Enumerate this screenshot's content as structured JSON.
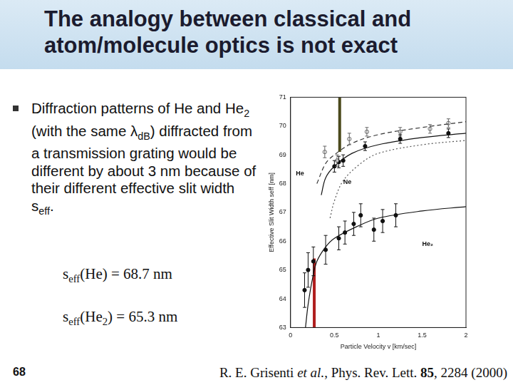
{
  "slide": {
    "title": "The analogy between classical and atom/molecule optics is not exact",
    "bullet": [
      {
        "text": "Diffraction patterns of He and He"
      },
      {
        "sub": "2"
      },
      {
        "text": " (with the same λ"
      },
      {
        "sub": "dB"
      },
      {
        "text": ") diffracted from a transmission grating would be different by about 3 nm because of their different effective slit width s"
      },
      {
        "sub": "eff"
      },
      {
        "text": "."
      }
    ],
    "equations": [
      [
        {
          "text": "s"
        },
        {
          "sub": "eff"
        },
        {
          "text": "(He) = 68.7 nm"
        }
      ],
      [
        {
          "text": "s"
        },
        {
          "sub": "eff"
        },
        {
          "text": "(He"
        },
        {
          "sub": "2"
        },
        {
          "text": ") = 65.3 nm"
        }
      ]
    ],
    "page": "68",
    "citation": [
      {
        "text": "R. E. Grisenti "
      },
      {
        "italic": "et al."
      },
      {
        "text": ", Phys. Rev. Lett. "
      },
      {
        "bold": "85"
      },
      {
        "text": ", 2284 (2000)"
      }
    ]
  },
  "chart_data": {
    "type": "scatter",
    "x_label": "Particle Velocity v [km/sec]",
    "y_label": "Effective Slit Width seff [nm]",
    "xlim": [
      0,
      2
    ],
    "xticks": [
      0,
      0.5,
      1,
      1.5,
      2
    ],
    "ylim": [
      63,
      71
    ],
    "yticks": [
      63,
      64,
      65,
      66,
      67,
      68,
      69,
      70,
      71
    ],
    "grid": false,
    "series": [
      {
        "type": "line",
        "color": "#333333",
        "marker": "none",
        "line_style": "dashed",
        "x": [
          0.3,
          0.4,
          0.5,
          0.7,
          1.0,
          1.5,
          2.0
        ],
        "values": [
          68.0,
          68.7,
          69.0,
          69.4,
          69.7,
          69.95,
          70.15
        ]
      },
      {
        "type": "line",
        "color": "#111111",
        "marker": "none",
        "line_style": "solid",
        "x": [
          0.35,
          0.4,
          0.5,
          0.7,
          1.0,
          1.5,
          2.0
        ],
        "values": [
          67.6,
          68.2,
          68.6,
          69.05,
          69.35,
          69.6,
          69.75
        ]
      },
      {
        "type": "line",
        "color": "#555555",
        "marker": "none",
        "line_style": "dotted",
        "x": [
          0.45,
          0.5,
          0.6,
          0.8,
          1.0,
          1.5,
          2.0
        ],
        "values": [
          66.8,
          67.4,
          68.1,
          68.7,
          69.05,
          69.35,
          69.5
        ]
      },
      {
        "type": "line",
        "color": "#111111",
        "marker": "none",
        "line_style": "solid",
        "x": [
          0.17,
          0.2,
          0.25,
          0.3,
          0.4,
          0.5,
          0.75,
          1.0,
          1.5,
          2.0
        ],
        "values": [
          63.0,
          63.8,
          64.7,
          65.3,
          65.8,
          66.1,
          66.5,
          66.8,
          67.05,
          67.2
        ]
      },
      {
        "name": "He",
        "type": "scatter",
        "color": "#666666",
        "marker": "circle_open",
        "x": [
          0.39,
          0.53,
          0.67,
          0.87,
          1.25,
          1.59,
          1.8
        ],
        "values": [
          69.1,
          68.8,
          69.55,
          69.8,
          69.8,
          69.9,
          70.1
        ],
        "errors": [
          0.2,
          0.2,
          0.2,
          0.15,
          0.15,
          0.15,
          0.15
        ]
      },
      {
        "name": "Ne",
        "type": "scatter",
        "color": "#111111",
        "marker": "circle",
        "x": [
          0.5,
          0.55,
          0.6,
          0.85,
          1.25,
          1.8
        ],
        "values": [
          68.6,
          68.75,
          68.8,
          69.3,
          69.55,
          69.75
        ],
        "errors": [
          0.2,
          0.2,
          0.2,
          0.15,
          0.15,
          0.15
        ]
      },
      {
        "name": "He₂",
        "type": "scatter",
        "color": "#111111",
        "marker": "circle",
        "x": [
          0.16,
          0.2,
          0.26,
          0.4,
          0.55,
          0.62,
          0.72,
          0.8,
          0.95,
          1.05,
          1.2
        ],
        "values": [
          64.3,
          65.0,
          65.3,
          65.7,
          66.1,
          66.3,
          66.6,
          66.9,
          66.4,
          66.7,
          66.9
        ],
        "errors": [
          0.6,
          0.6,
          0.5,
          0.5,
          0.4,
          0.4,
          0.4,
          0.4,
          0.4,
          0.4,
          0.4
        ]
      },
      {
        "type": "line",
        "color": "#4b4a1c",
        "marker": "none",
        "line_style": "solid",
        "x": [
          0.56,
          0.56
        ],
        "values": [
          69.1,
          71
        ]
      },
      {
        "type": "line",
        "color": "#b01e1e",
        "marker": "none",
        "line_style": "solid",
        "x": [
          0.27,
          0.27
        ],
        "values": [
          63,
          65.4
        ]
      }
    ]
  }
}
